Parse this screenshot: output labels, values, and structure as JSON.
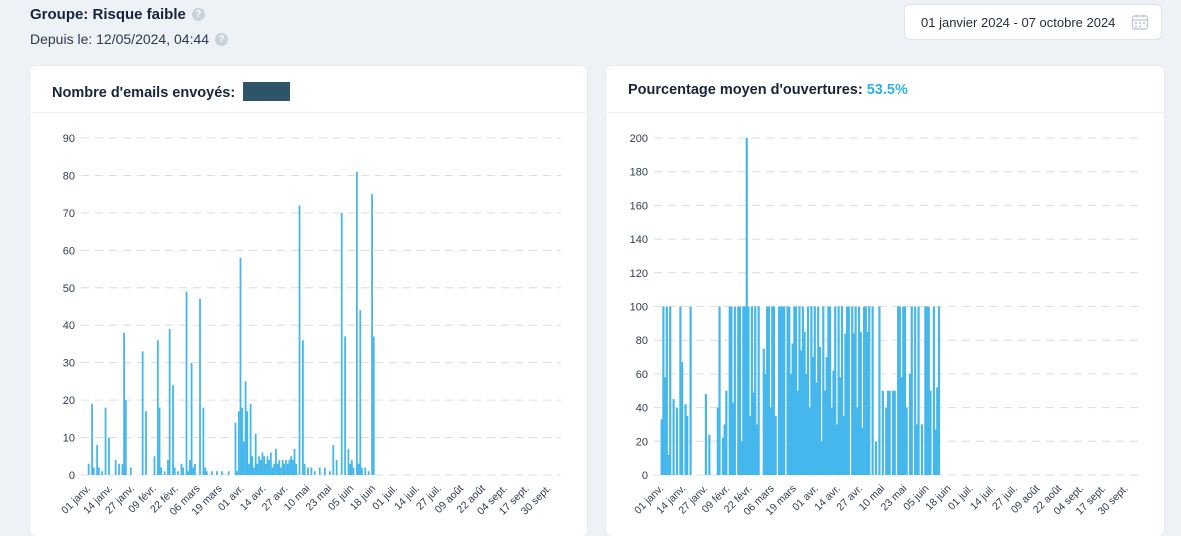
{
  "header": {
    "group_title": "Groupe: Risque faible",
    "since": "Depuis le: 12/05/2024, 04:44"
  },
  "date_range": {
    "label": "01 janvier 2024 - 07 octobre 2024"
  },
  "icons": {
    "help": "question-circle-icon",
    "calendar": "calendar-icon"
  },
  "colors": {
    "bar": "#45b7ec",
    "accent": "#31b1e8",
    "grid": "#d9dee4"
  },
  "chart_data": [
    {
      "type": "bar",
      "title": "Nombre d'emails envoyés:",
      "title_value": "",
      "ylim": [
        0,
        90
      ],
      "yticks": [
        0,
        10,
        20,
        30,
        40,
        50,
        60,
        70,
        80,
        90
      ],
      "xtick_labels": [
        "01 janv.",
        "14 janv.",
        "27 janv.",
        "09 févr.",
        "22 févr.",
        "06 mars",
        "19 mars",
        "01 avr.",
        "14 avr.",
        "27 avr.",
        "10 mai",
        "23 mai",
        "05 juin",
        "18 juin",
        "01 juil.",
        "14 juil.",
        "27 juil.",
        "09 août",
        "22 août",
        "04 sept.",
        "17 sept.",
        "30 sept."
      ],
      "start_date": "2024-01-01",
      "days": 281,
      "points": [
        [
          1,
          3
        ],
        [
          3,
          19
        ],
        [
          4,
          2
        ],
        [
          6,
          8
        ],
        [
          7,
          2
        ],
        [
          9,
          1
        ],
        [
          11,
          18
        ],
        [
          13,
          10
        ],
        [
          17,
          4
        ],
        [
          19,
          3
        ],
        [
          21,
          3
        ],
        [
          22,
          38
        ],
        [
          23,
          20
        ],
        [
          26,
          2
        ],
        [
          33,
          33
        ],
        [
          35,
          17
        ],
        [
          40,
          5
        ],
        [
          42,
          36
        ],
        [
          43,
          18
        ],
        [
          44,
          2
        ],
        [
          46,
          1
        ],
        [
          48,
          4
        ],
        [
          49,
          39
        ],
        [
          51,
          24
        ],
        [
          52,
          2
        ],
        [
          54,
          1
        ],
        [
          56,
          3
        ],
        [
          57,
          2
        ],
        [
          59,
          49
        ],
        [
          60,
          1
        ],
        [
          61,
          4
        ],
        [
          62,
          30
        ],
        [
          63,
          2
        ],
        [
          64,
          3
        ],
        [
          67,
          47
        ],
        [
          69,
          18
        ],
        [
          70,
          2
        ],
        [
          71,
          1
        ],
        [
          74,
          1
        ],
        [
          77,
          1
        ],
        [
          80,
          1
        ],
        [
          84,
          1
        ],
        [
          88,
          14
        ],
        [
          89,
          1
        ],
        [
          90,
          17
        ],
        [
          91,
          58
        ],
        [
          92,
          18
        ],
        [
          93,
          9
        ],
        [
          94,
          25
        ],
        [
          95,
          17
        ],
        [
          96,
          3
        ],
        [
          97,
          19
        ],
        [
          98,
          5
        ],
        [
          99,
          2
        ],
        [
          100,
          11
        ],
        [
          101,
          3
        ],
        [
          102,
          5
        ],
        [
          103,
          4
        ],
        [
          104,
          6
        ],
        [
          105,
          5
        ],
        [
          106,
          3
        ],
        [
          107,
          5
        ],
        [
          108,
          4
        ],
        [
          109,
          6
        ],
        [
          110,
          2
        ],
        [
          111,
          3
        ],
        [
          112,
          7
        ],
        [
          113,
          3
        ],
        [
          114,
          4
        ],
        [
          115,
          2
        ],
        [
          116,
          4
        ],
        [
          117,
          3
        ],
        [
          118,
          4
        ],
        [
          119,
          3
        ],
        [
          120,
          4
        ],
        [
          121,
          5
        ],
        [
          122,
          4
        ],
        [
          123,
          7
        ],
        [
          124,
          3
        ],
        [
          126,
          72
        ],
        [
          128,
          36
        ],
        [
          129,
          3
        ],
        [
          131,
          2
        ],
        [
          133,
          2
        ],
        [
          135,
          1
        ],
        [
          138,
          2
        ],
        [
          141,
          2
        ],
        [
          144,
          1
        ],
        [
          146,
          8
        ],
        [
          148,
          4
        ],
        [
          151,
          70
        ],
        [
          153,
          37
        ],
        [
          155,
          7
        ],
        [
          156,
          3
        ],
        [
          157,
          4
        ],
        [
          158,
          2
        ],
        [
          160,
          81
        ],
        [
          161,
          3
        ],
        [
          162,
          44
        ],
        [
          163,
          2
        ],
        [
          165,
          2
        ],
        [
          167,
          1
        ],
        [
          169,
          75
        ],
        [
          170,
          37
        ]
      ]
    },
    {
      "type": "bar",
      "title": "Pourcentage moyen d'ouvertures:",
      "title_value": "53.5%",
      "ylim": [
        0,
        200
      ],
      "yticks": [
        0,
        20,
        40,
        60,
        80,
        100,
        120,
        140,
        160,
        180,
        200
      ],
      "xtick_labels": [
        "01 janv.",
        "14 janv.",
        "27 janv.",
        "09 févr.",
        "22 févr.",
        "06 mars",
        "19 mars",
        "01 avr.",
        "14 avr.",
        "27 avr.",
        "10 mai",
        "23 mai",
        "05 juin",
        "18 juin",
        "01 juil.",
        "14 juil.",
        "27 juil.",
        "09 août",
        "22 août",
        "04 sept.",
        "17 sept.",
        "30 sept."
      ],
      "start_date": "2024-01-01",
      "days": 281,
      "points": [
        [
          1,
          33
        ],
        [
          2,
          100
        ],
        [
          3,
          58
        ],
        [
          4,
          100
        ],
        [
          5,
          12
        ],
        [
          6,
          100
        ],
        [
          8,
          45
        ],
        [
          10,
          40
        ],
        [
          12,
          100
        ],
        [
          13,
          67
        ],
        [
          15,
          42
        ],
        [
          16,
          35
        ],
        [
          18,
          100
        ],
        [
          27,
          48
        ],
        [
          29,
          24
        ],
        [
          34,
          40
        ],
        [
          35,
          100
        ],
        [
          37,
          22
        ],
        [
          38,
          30
        ],
        [
          39,
          50
        ],
        [
          41,
          100
        ],
        [
          42,
          100
        ],
        [
          43,
          43
        ],
        [
          44,
          100
        ],
        [
          46,
          100
        ],
        [
          47,
          100
        ],
        [
          48,
          20
        ],
        [
          49,
          100
        ],
        [
          50,
          100
        ],
        [
          51,
          200
        ],
        [
          52,
          100
        ],
        [
          53,
          35
        ],
        [
          54,
          100
        ],
        [
          55,
          49
        ],
        [
          56,
          100
        ],
        [
          57,
          30
        ],
        [
          58,
          100
        ],
        [
          61,
          75
        ],
        [
          62,
          60
        ],
        [
          63,
          100
        ],
        [
          64,
          100
        ],
        [
          65,
          40
        ],
        [
          66,
          100
        ],
        [
          67,
          100
        ],
        [
          68,
          35
        ],
        [
          70,
          100
        ],
        [
          71,
          100
        ],
        [
          72,
          100
        ],
        [
          73,
          100
        ],
        [
          75,
          100
        ],
        [
          76,
          100
        ],
        [
          77,
          60
        ],
        [
          78,
          78
        ],
        [
          79,
          100
        ],
        [
          80,
          100
        ],
        [
          81,
          50
        ],
        [
          82,
          100
        ],
        [
          83,
          74
        ],
        [
          84,
          100
        ],
        [
          85,
          85
        ],
        [
          86,
          60
        ],
        [
          87,
          100
        ],
        [
          88,
          40
        ],
        [
          89,
          100
        ],
        [
          90,
          70
        ],
        [
          91,
          100
        ],
        [
          92,
          55
        ],
        [
          93,
          100
        ],
        [
          94,
          76
        ],
        [
          95,
          20
        ],
        [
          96,
          100
        ],
        [
          97,
          50
        ],
        [
          98,
          70
        ],
        [
          99,
          100
        ],
        [
          100,
          100
        ],
        [
          101,
          40
        ],
        [
          102,
          62
        ],
        [
          103,
          100
        ],
        [
          104,
          30
        ],
        [
          105,
          100
        ],
        [
          106,
          58
        ],
        [
          107,
          100
        ],
        [
          108,
          35
        ],
        [
          109,
          84
        ],
        [
          110,
          100
        ],
        [
          111,
          100
        ],
        [
          113,
          100
        ],
        [
          114,
          84
        ],
        [
          115,
          100
        ],
        [
          116,
          40
        ],
        [
          117,
          100
        ],
        [
          118,
          85
        ],
        [
          119,
          28
        ],
        [
          120,
          100
        ],
        [
          121,
          100
        ],
        [
          122,
          85
        ],
        [
          123,
          100
        ],
        [
          125,
          100
        ],
        [
          127,
          20
        ],
        [
          129,
          100
        ],
        [
          131,
          50
        ],
        [
          133,
          40
        ],
        [
          134,
          50
        ],
        [
          135,
          50
        ],
        [
          137,
          50
        ],
        [
          138,
          50
        ],
        [
          140,
          100
        ],
        [
          141,
          100
        ],
        [
          142,
          58
        ],
        [
          143,
          100
        ],
        [
          144,
          100
        ],
        [
          145,
          40
        ],
        [
          147,
          60
        ],
        [
          148,
          100
        ],
        [
          150,
          100
        ],
        [
          151,
          30
        ],
        [
          152,
          100
        ],
        [
          154,
          30
        ],
        [
          156,
          100
        ],
        [
          157,
          100
        ],
        [
          158,
          100
        ],
        [
          159,
          50
        ],
        [
          161,
          100
        ],
        [
          162,
          27
        ],
        [
          163,
          52
        ],
        [
          164,
          100
        ]
      ]
    }
  ]
}
